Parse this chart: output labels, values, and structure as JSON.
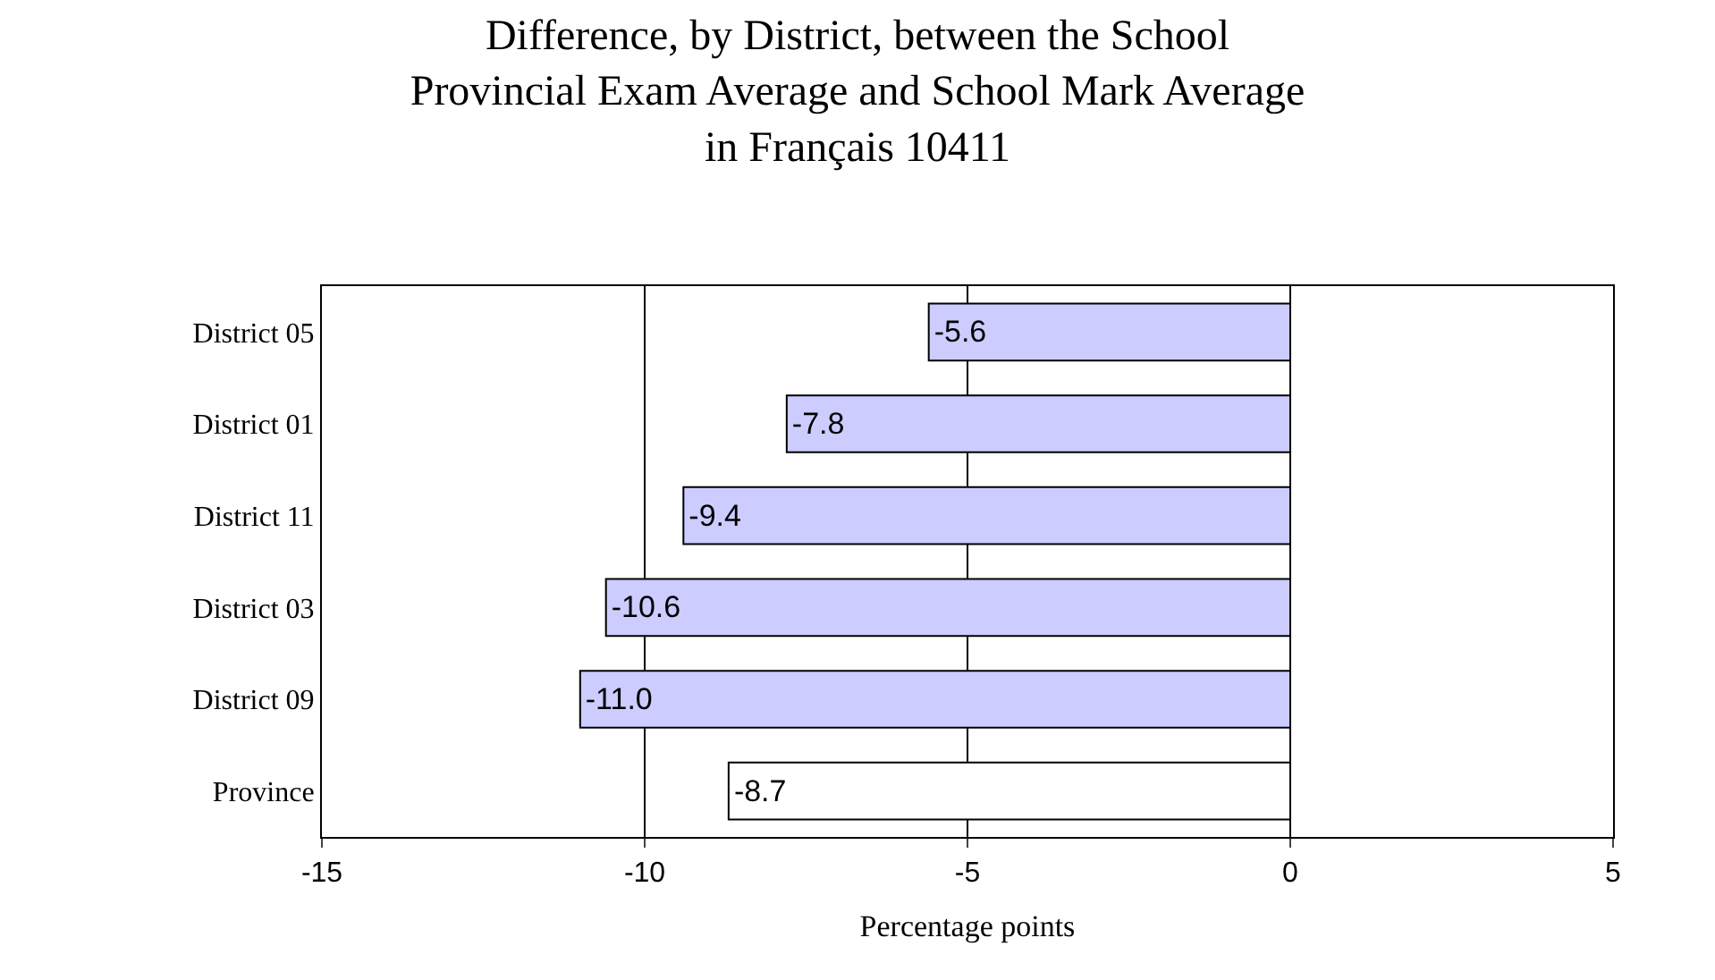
{
  "chart_data": {
    "type": "bar",
    "orientation": "horizontal",
    "title": "Difference, by District, between the School\nProvincial Exam Average and School Mark Average\nin Français 10411",
    "xlabel": "Percentage points",
    "categories": [
      "District 05",
      "District 01",
      "District 11",
      "District 03",
      "District 09",
      "Province"
    ],
    "values": [
      -5.6,
      -7.8,
      -9.4,
      -10.6,
      -11.0,
      -8.7
    ],
    "colors": [
      "#ccccff",
      "#ccccff",
      "#ccccff",
      "#ccccff",
      "#ccccff",
      "#ffffff"
    ],
    "value_labels": [
      "-5.6",
      "-7.8",
      "-9.4",
      "-10.6",
      "-11.0",
      "-8.7"
    ],
    "xlim": [
      -15,
      5
    ],
    "xticks": [
      -15,
      -10,
      -5,
      0,
      5
    ],
    "grid": "x",
    "legend": false
  }
}
